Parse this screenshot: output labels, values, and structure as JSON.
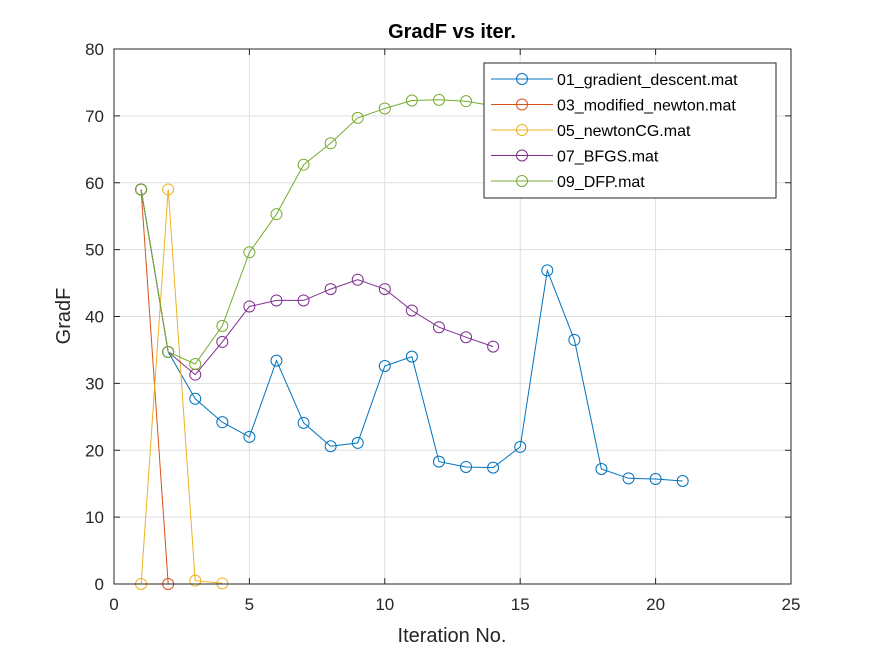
{
  "chart_data": {
    "type": "line",
    "title": "GradF vs iter.",
    "xlabel": "Iteration No.",
    "ylabel": "GradF",
    "xlim": [
      0,
      25
    ],
    "ylim": [
      0,
      80
    ],
    "xticks": [
      "0",
      "5",
      "10",
      "15",
      "20",
      "25"
    ],
    "yticks": [
      "0",
      "10",
      "20",
      "30",
      "40",
      "50",
      "60",
      "70",
      "80"
    ],
    "grid": true,
    "legend_position": "top-right",
    "marker": "circle",
    "series": [
      {
        "name": "01_gradient_descent.mat",
        "color": "#0072BD",
        "x": [
          1,
          2,
          3,
          4,
          5,
          6,
          7,
          8,
          9,
          10,
          11,
          12,
          13,
          14,
          15,
          16,
          17,
          18,
          19,
          20,
          21
        ],
        "y": [
          59.0,
          34.7,
          27.7,
          24.2,
          22.0,
          33.4,
          24.1,
          20.6,
          21.1,
          32.6,
          34.0,
          18.3,
          17.5,
          17.4,
          20.5,
          46.9,
          36.5,
          17.2,
          15.8,
          15.7,
          15.4
        ]
      },
      {
        "name": "03_modified_newton.mat",
        "color": "#D95319",
        "x": [
          1,
          2
        ],
        "y": [
          59.0,
          0.0
        ]
      },
      {
        "name": "05_newtonCG.mat",
        "color": "#EDB120",
        "x": [
          1,
          2,
          3,
          4
        ],
        "y": [
          0.0,
          59.0,
          0.5,
          0.1
        ]
      },
      {
        "name": "07_BFGS.mat",
        "color": "#7E2F8E",
        "x": [
          1,
          2,
          3,
          4,
          5,
          6,
          7,
          8,
          9,
          10,
          11,
          12,
          13,
          14
        ],
        "y": [
          59.0,
          34.7,
          31.3,
          36.2,
          41.5,
          42.4,
          42.4,
          44.1,
          45.5,
          44.1,
          40.9,
          38.4,
          36.9,
          35.5
        ]
      },
      {
        "name": "09_DFP.mat",
        "color": "#77AC30",
        "x": [
          1,
          2,
          3,
          4,
          5,
          6,
          7,
          8,
          9,
          10,
          11,
          12,
          13,
          14
        ],
        "y": [
          59.0,
          34.7,
          32.9,
          38.6,
          49.6,
          55.3,
          62.7,
          65.9,
          69.7,
          71.1,
          72.3,
          72.4,
          72.2,
          71.5
        ]
      }
    ]
  }
}
